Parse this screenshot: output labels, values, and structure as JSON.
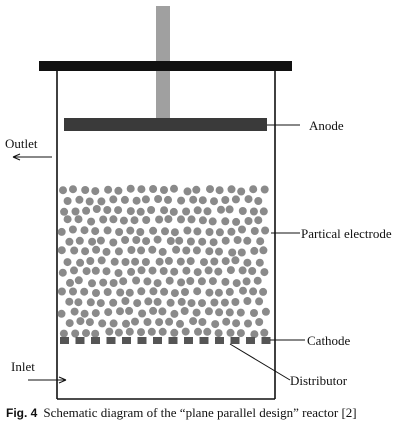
{
  "labels": {
    "anode": "Anode",
    "outlet": "Outlet",
    "partical_electrode": "Partical electrode",
    "cathode": "Cathode",
    "inlet": "Inlet",
    "distributor": "Distributor"
  },
  "caption": {
    "fig_label": "Fig. 4",
    "text": "Schematic diagram of the “plane parallel design” reactor [2]"
  },
  "colors": {
    "particle": "#8a8a8a",
    "anode_plate": "#3a3a3a",
    "rod": "#a0a0a0",
    "wall": "#111111",
    "cathode_segment": "#555555"
  }
}
